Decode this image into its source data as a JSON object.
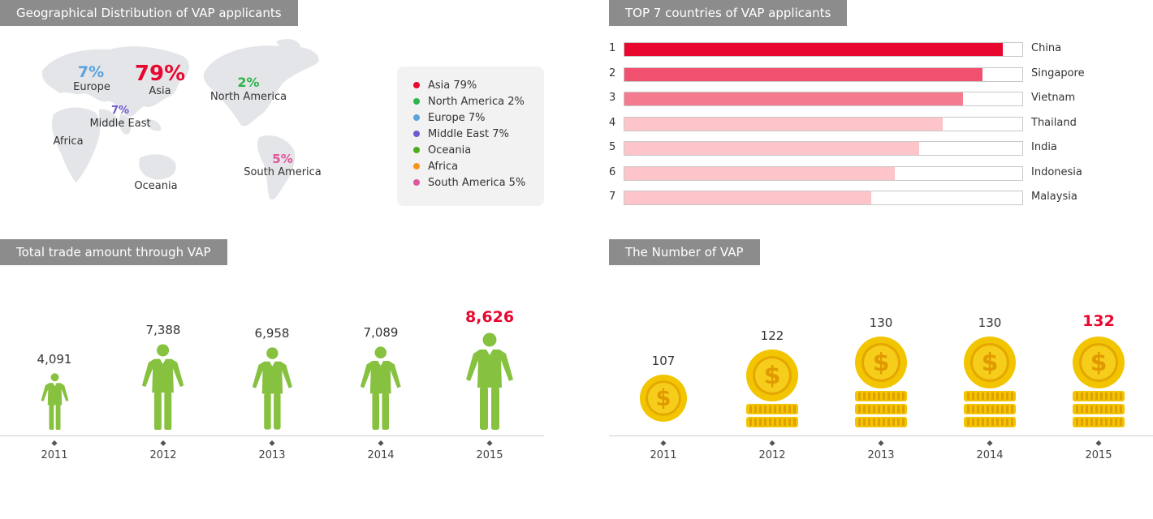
{
  "sections": {
    "geo_title": "Geographical Distribution of VAP applicants",
    "top_title": "TOP 7 countries of VAP applicants",
    "trade_title": "Total trade amount through VAP",
    "number_title": "The Number of VAP"
  },
  "map": {
    "regions": [
      {
        "id": "europe",
        "label": "Europe",
        "pct": "7%",
        "color": "#5ba3dc"
      },
      {
        "id": "asia",
        "label": "Asia",
        "pct": "79%",
        "color": "#e8072f"
      },
      {
        "id": "middle_east",
        "label": "Middle East",
        "pct": "7%",
        "color": "#6f5bd1"
      },
      {
        "id": "north_america",
        "label": "North America",
        "pct": "2%",
        "color": "#2fb34a"
      },
      {
        "id": "africa",
        "label": "Africa",
        "pct": "",
        "color": ""
      },
      {
        "id": "oceania",
        "label": "Oceania",
        "pct": "",
        "color": ""
      },
      {
        "id": "south_america",
        "label": "South America",
        "pct": "5%",
        "color": "#e0559b"
      }
    ]
  },
  "legend": [
    {
      "label": "Asia 79%",
      "color": "#e8072f"
    },
    {
      "label": "North America 2%",
      "color": "#2fb34a"
    },
    {
      "label": "Europe 7%",
      "color": "#5ba3dc"
    },
    {
      "label": "Middle East 7%",
      "color": "#6f5bd1"
    },
    {
      "label": "Oceania",
      "color": "#4cae1c"
    },
    {
      "label": "Africa",
      "color": "#f7941d"
    },
    {
      "label": "South America 5%",
      "color": "#e0559b"
    }
  ],
  "chart_data": [
    {
      "type": "bar",
      "title": "TOP 7 countries of VAP applicants",
      "orientation": "horizontal",
      "categories": [
        "China",
        "Singapore",
        "Vietnam",
        "Thailand",
        "India",
        "Indonesia",
        "Malaysia"
      ],
      "ranks": [
        "1",
        "2",
        "3",
        "4",
        "5",
        "6",
        "7"
      ],
      "values": [
        95,
        90,
        85,
        80,
        74,
        68,
        62
      ],
      "xlim": [
        0,
        100
      ],
      "colors": [
        "#e8072f",
        "#f2506f",
        "#f47a90",
        "#fdc4c9",
        "#fdc4c9",
        "#fdc4c9",
        "#fdc4c9"
      ]
    },
    {
      "type": "bar",
      "title": "Total trade amount through VAP",
      "categories": [
        "2011",
        "2012",
        "2013",
        "2014",
        "2015"
      ],
      "values": [
        4091,
        7388,
        6958,
        7089,
        8626
      ],
      "labels": [
        "4,091",
        "7,388",
        "6,958",
        "7,089",
        "8,626"
      ],
      "highlight_index": 4,
      "color": "#86c13f",
      "highlight_color": "#e8072f"
    },
    {
      "type": "bar",
      "title": "The Number of VAP",
      "categories": [
        "2011",
        "2012",
        "2013",
        "2014",
        "2015"
      ],
      "values": [
        107,
        122,
        130,
        130,
        132
      ],
      "labels": [
        "107",
        "122",
        "130",
        "130",
        "132"
      ],
      "coin_rows": [
        0,
        2,
        3,
        3,
        3
      ],
      "highlight_index": 4,
      "color": "#f2c500",
      "highlight_color": "#e8072f"
    }
  ]
}
